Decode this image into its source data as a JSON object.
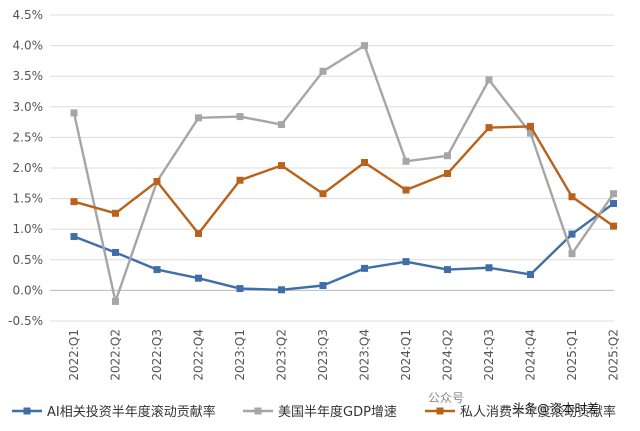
{
  "chart_data": {
    "type": "line",
    "categories": [
      "2022:Q1",
      "2022:Q2",
      "2022:Q3",
      "2022:Q4",
      "2023:Q1",
      "2023:Q2",
      "2023:Q3",
      "2023:Q4",
      "2024:Q1",
      "2024:Q2",
      "2024:Q3",
      "2024:Q4",
      "2025:Q1",
      "2025:Q2"
    ],
    "y_ticks": [
      "-0.5%",
      "0.0%",
      "0.5%",
      "1.0%",
      "1.5%",
      "2.0%",
      "2.5%",
      "3.0%",
      "3.5%",
      "4.0%",
      "4.5%"
    ],
    "ylim": [
      -0.5,
      4.5
    ],
    "grid": true,
    "legend_position": "bottom",
    "series": [
      {
        "name": "AI相关投资半年度滚动贡献率",
        "color": "#3f6ea8",
        "marker": "square",
        "values": [
          0.88,
          0.62,
          0.34,
          0.2,
          0.03,
          0.01,
          0.08,
          0.36,
          0.47,
          0.34,
          0.37,
          0.26,
          0.92,
          1.42
        ]
      },
      {
        "name": "美国半年度GDP增速",
        "color": "#a6a6a6",
        "marker": "square",
        "values": [
          2.9,
          -0.18,
          1.78,
          2.82,
          2.84,
          2.71,
          3.58,
          4.0,
          2.11,
          2.2,
          3.44,
          2.57,
          0.6,
          1.58
        ]
      },
      {
        "name": "私人消费半年度滚动贡献率",
        "color": "#b8621b",
        "marker": "square",
        "values": [
          1.45,
          1.26,
          1.78,
          0.93,
          1.8,
          2.04,
          1.58,
          2.09,
          1.64,
          1.91,
          2.66,
          2.68,
          1.53,
          1.05
        ]
      }
    ]
  },
  "watermark": "公众号",
  "credit": "头条@资本时差"
}
